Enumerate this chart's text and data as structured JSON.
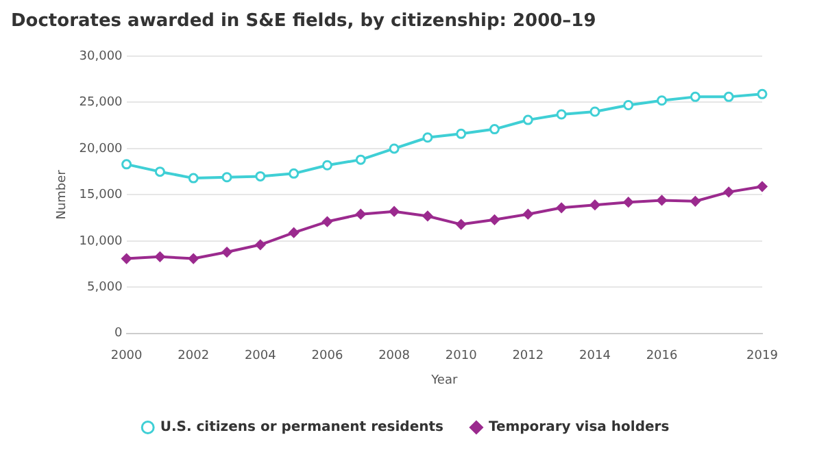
{
  "chart_data": {
    "type": "line",
    "title": "Doctorates awarded in S&E fields, by citizenship: 2000–19",
    "xlabel": "Year",
    "ylabel": "Number",
    "x": [
      2000,
      2001,
      2002,
      2003,
      2004,
      2005,
      2006,
      2007,
      2008,
      2009,
      2010,
      2011,
      2012,
      2013,
      2014,
      2015,
      2016,
      2017,
      2018,
      2019
    ],
    "series": [
      {
        "name": "U.S. citizens or permanent residents",
        "color": "#3fcfd5",
        "marker": "circle",
        "values": [
          18300,
          17500,
          16800,
          16900,
          17000,
          17300,
          18200,
          18800,
          20000,
          21200,
          21600,
          22100,
          23100,
          23700,
          24000,
          24700,
          25200,
          25600,
          25600,
          25900
        ]
      },
      {
        "name": "Temporary visa holders",
        "color": "#9b2a8e",
        "marker": "diamond",
        "values": [
          8100,
          8300,
          8100,
          8800,
          9600,
          10900,
          12100,
          12900,
          13200,
          12700,
          11800,
          12300,
          12900,
          13600,
          13900,
          14200,
          14400,
          14300,
          15300,
          15900
        ]
      }
    ],
    "xlim": [
      2000,
      2019
    ],
    "xticks": [
      2000,
      2002,
      2004,
      2006,
      2008,
      2010,
      2012,
      2014,
      2016,
      2019
    ],
    "ylim": [
      0,
      30000
    ],
    "yticks": [
      {
        "value": 0,
        "label": "0"
      },
      {
        "value": 5000,
        "label": "5,000"
      },
      {
        "value": 10000,
        "label": "10,000"
      },
      {
        "value": 15000,
        "label": "15,000"
      },
      {
        "value": 20000,
        "label": "20,000"
      },
      {
        "value": 25000,
        "label": "25,000"
      },
      {
        "value": 30000,
        "label": "30,000"
      }
    ],
    "grid": "y",
    "legend": "bottom",
    "line_style": "solid"
  }
}
